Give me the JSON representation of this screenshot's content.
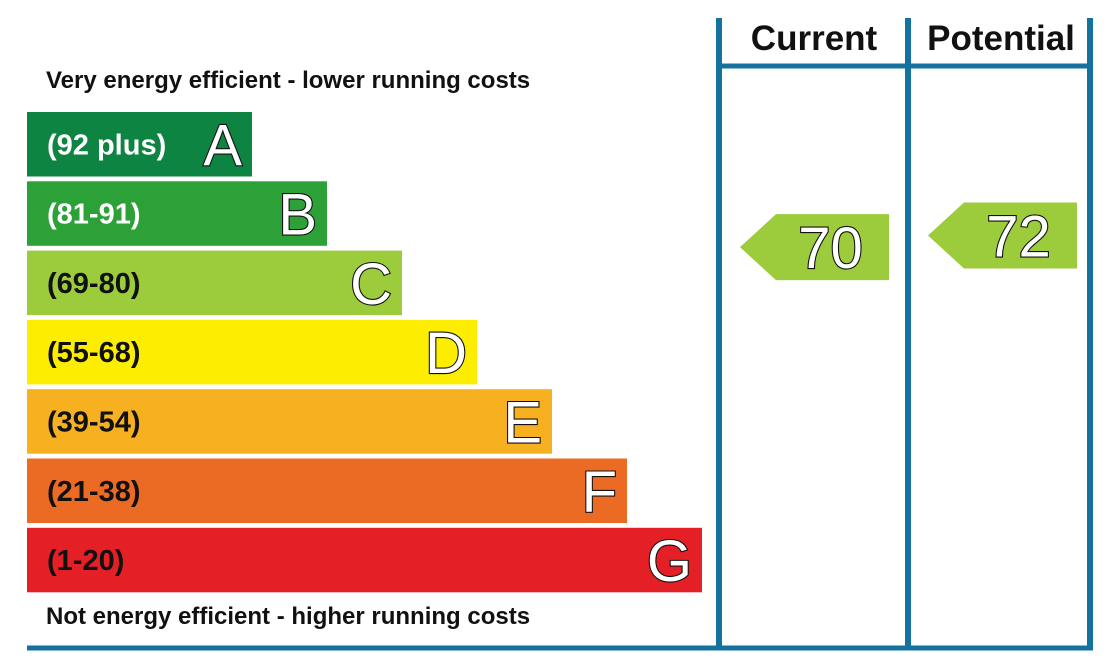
{
  "chart_data": {
    "type": "bar",
    "top_caption": "Very energy efficient - lower running costs",
    "bottom_caption": "Not energy efficient - higher running costs",
    "bands": [
      {
        "letter": "A",
        "range": "(92 plus)",
        "color": "#0e8443",
        "text_color": "#ffffff"
      },
      {
        "letter": "B",
        "range": "(81-91)",
        "color": "#2ba138",
        "text_color": "#ffffff"
      },
      {
        "letter": "C",
        "range": "(69-80)",
        "color": "#9ccb3b",
        "text_color": "#111111"
      },
      {
        "letter": "D",
        "range": "(55-68)",
        "color": "#fdee01",
        "text_color": "#111111"
      },
      {
        "letter": "E",
        "range": "(39-54)",
        "color": "#f7b020",
        "text_color": "#111111"
      },
      {
        "letter": "F",
        "range": "(21-38)",
        "color": "#ec6b24",
        "text_color": "#111111"
      },
      {
        "letter": "G",
        "range": "(1-20)",
        "color": "#e41f26",
        "text_color": "#111111"
      }
    ],
    "columns": [
      {
        "title": "Current",
        "value": 70,
        "label": "70",
        "band": "C",
        "color": "#9ccb3b"
      },
      {
        "title": "Potential",
        "value": 72,
        "label": "72",
        "band": "C",
        "color": "#9ccb3b"
      }
    ],
    "border_color": "#13739e"
  }
}
